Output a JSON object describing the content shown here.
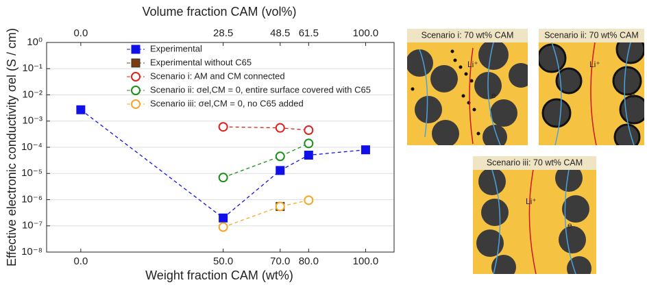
{
  "chart_data": {
    "type": "line",
    "x_label": "Weight fraction CAM (wt%)",
    "x2_label": "Volume fraction CAM (vol%)",
    "y_label": "Effective electronic conductivity σel (S / cm)",
    "xlim": [
      -12,
      110
    ],
    "xticks": [
      {
        "value": 0,
        "label": "0.0"
      },
      {
        "value": 50,
        "label": "50.0"
      },
      {
        "value": 70,
        "label": "70.0"
      },
      {
        "value": 80,
        "label": "80.0"
      },
      {
        "value": 100,
        "label": "100.0"
      }
    ],
    "x2ticks": [
      {
        "value": 0,
        "label": "0.0"
      },
      {
        "value": 28.5,
        "label": "28.5"
      },
      {
        "value": 48.5,
        "label": "48.5"
      },
      {
        "value": 61.5,
        "label": "61.5"
      },
      {
        "value": 100,
        "label": "100.0"
      }
    ],
    "ylim": [
      1e-08,
      1
    ],
    "y_scale": "log",
    "grid": true,
    "yticks": [
      {
        "value": 1,
        "label": "10⁰"
      },
      {
        "value": 0.1,
        "label": "10⁻¹"
      },
      {
        "value": 0.01,
        "label": "10⁻²"
      },
      {
        "value": 0.001,
        "label": "10⁻³"
      },
      {
        "value": 0.0001,
        "label": "10⁻⁴"
      },
      {
        "value": 1e-05,
        "label": "10⁻⁵"
      },
      {
        "value": 1e-06,
        "label": "10⁻⁶"
      },
      {
        "value": 1e-07,
        "label": "10⁻⁷"
      },
      {
        "value": 1e-08,
        "label": "10⁻⁸"
      }
    ],
    "series": [
      {
        "name": "Experimental",
        "color": "#1010e8",
        "marker": "square",
        "filled": true,
        "x": [
          0,
          50,
          70,
          80,
          100
        ],
        "values": [
          0.0027,
          2e-07,
          1.3e-05,
          5e-05,
          8e-05
        ]
      },
      {
        "name": "Experimental without C65",
        "color": "#7a3b10",
        "marker": "square",
        "filled": true,
        "x": [
          70
        ],
        "values": [
          5.5e-07
        ]
      },
      {
        "name": "Scenario i: AM and CM connected",
        "color": "#e0201c",
        "marker": "circle",
        "filled": false,
        "x": [
          50,
          70,
          80
        ],
        "values": [
          0.0006,
          0.00055,
          0.00045
        ]
      },
      {
        "name": "Scenario ii: σel,CM = 0, entire surface covered with C65",
        "color": "#189018",
        "marker": "circle",
        "filled": false,
        "x": [
          50,
          70,
          80
        ],
        "values": [
          7e-06,
          4.5e-05,
          0.00014
        ]
      },
      {
        "name": "Scenario iii: σel,CM = 0, no C65 added",
        "color": "#f5a623",
        "marker": "circle",
        "filled": false,
        "x": [
          50,
          70,
          80
        ],
        "values": [
          9e-08,
          5.5e-07,
          9.5e-07
        ]
      }
    ]
  },
  "illustrations": [
    {
      "title": "Scenario i: 70 wt% CAM",
      "ion": "Li⁺",
      "electron": "e"
    },
    {
      "title": "Scenario ii: 70 wt% CAM",
      "ion": "Li⁺",
      "electron": "e"
    },
    {
      "title": "Scenario iii: 70 wt% CAM",
      "ion": "Li⁺",
      "electron": "e"
    }
  ]
}
